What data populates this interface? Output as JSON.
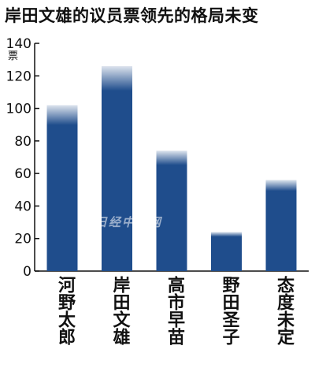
{
  "chart_data": {
    "type": "bar",
    "title": "岸田文雄的议员票领先的格局未变",
    "ylabel": "票",
    "ylim": [
      0,
      140
    ],
    "yticks": [
      0,
      20,
      40,
      60,
      80,
      100,
      120,
      140
    ],
    "categories": [
      "河野太郎",
      "岸田文雄",
      "高市早苗",
      "野田圣子",
      "态度未定"
    ],
    "values": [
      102,
      126,
      74,
      24,
      56
    ],
    "bar_color": "#1f4d8c",
    "grid": false
  },
  "watermark": "日经中文网"
}
